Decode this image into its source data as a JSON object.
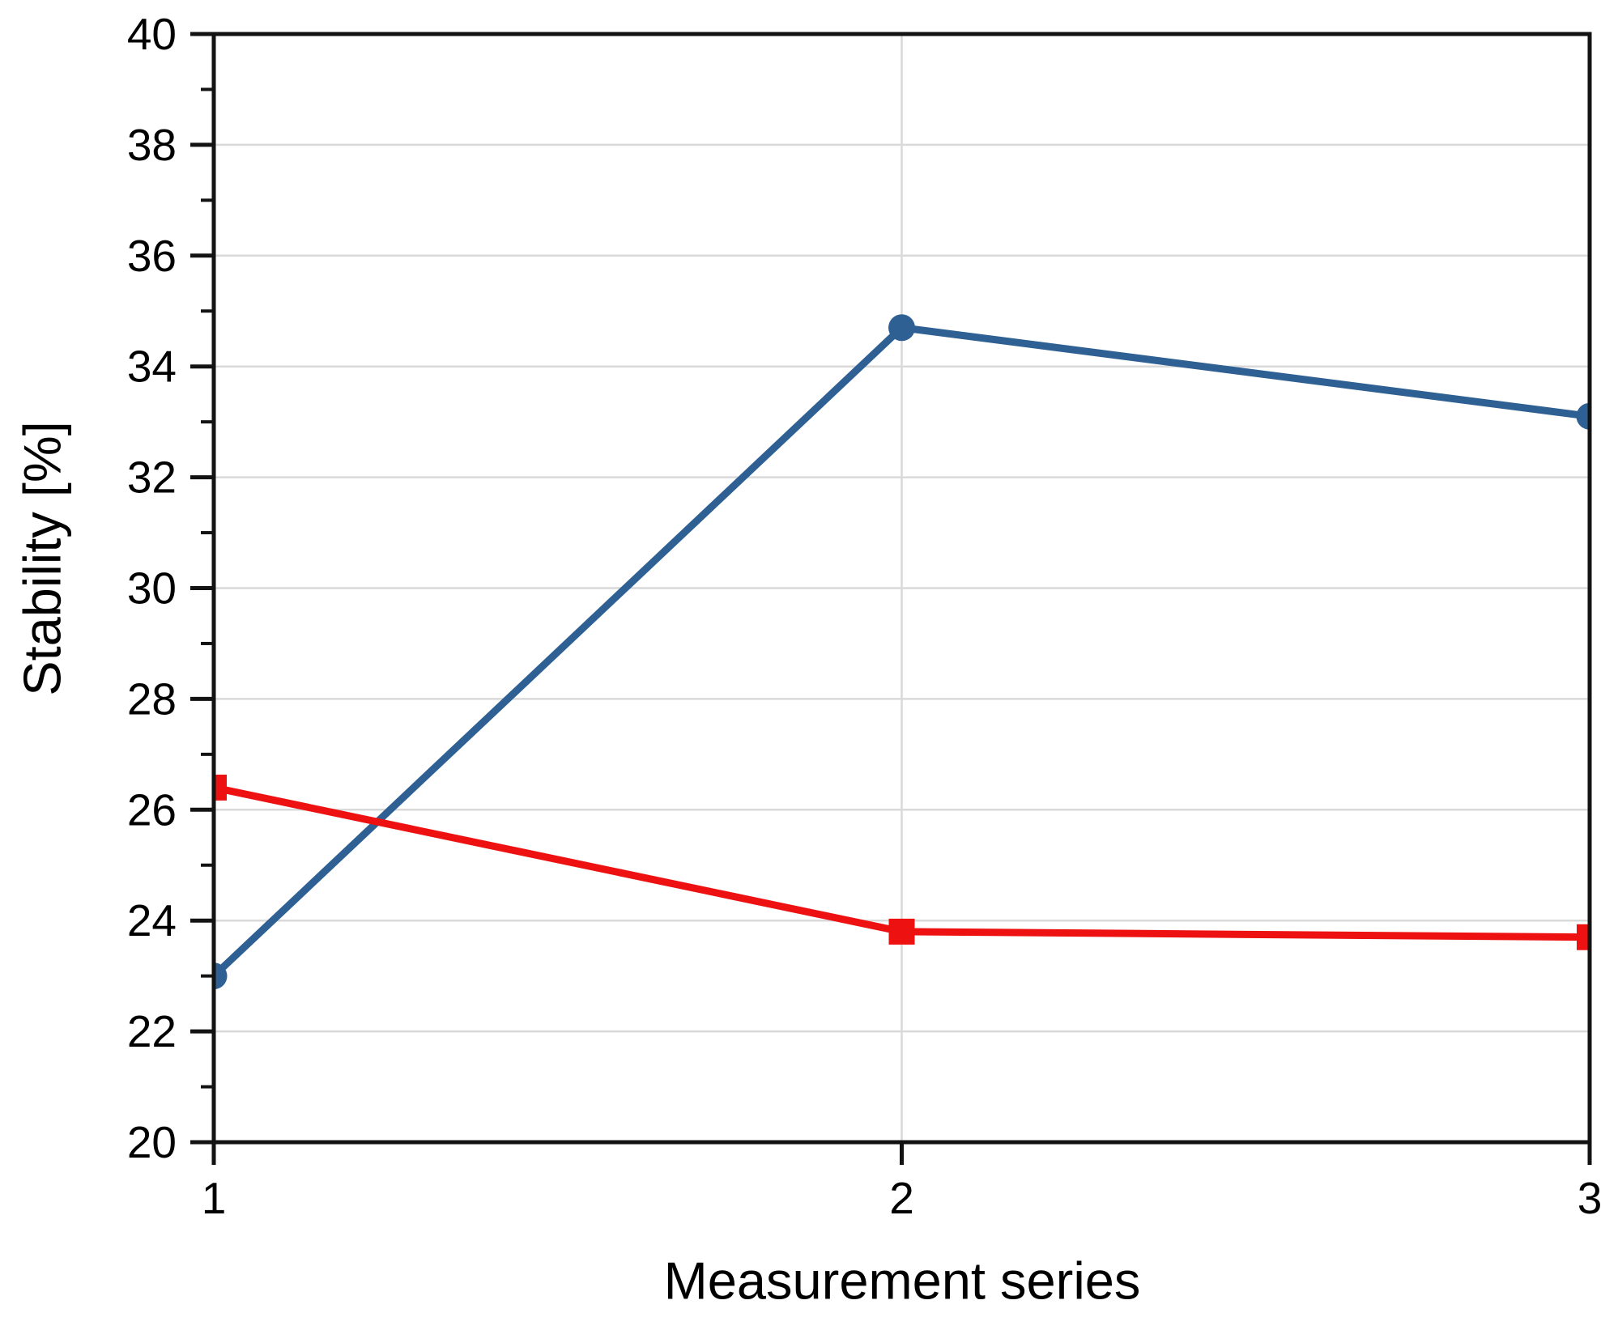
{
  "figure": {
    "background": "#ffffff",
    "axis_color": "#131313",
    "grid_color": "#d9d9d9",
    "tick_label_color": "#000000"
  },
  "chart_data": {
    "type": "line",
    "title": "",
    "xlabel": "Measurement series",
    "ylabel": "Stability [%]",
    "x": [
      1,
      2,
      3
    ],
    "xlim": [
      1,
      3
    ],
    "ylim": [
      20,
      40
    ],
    "x_tick_labels": [
      "1",
      "2",
      "3"
    ],
    "y_tick_labels": [
      "20",
      "22",
      "24",
      "26",
      "28",
      "30",
      "32",
      "34",
      "36",
      "38",
      "40"
    ],
    "y_major_ticks": [
      20,
      22,
      24,
      26,
      28,
      30,
      32,
      34,
      36,
      38,
      40
    ],
    "y_minor_ticks": [
      21,
      23,
      25,
      27,
      29,
      31,
      33,
      35,
      37,
      39
    ],
    "grid": {
      "horizontal_at": [
        22,
        24,
        26,
        28,
        30,
        32,
        34,
        36,
        38
      ],
      "vertical_at": [
        2
      ]
    },
    "legend": "none",
    "series": [
      {
        "name": "blue-circle-series",
        "marker": "circle",
        "color": "#2e6093",
        "values": [
          23.0,
          34.7,
          33.1
        ]
      },
      {
        "name": "red-square-series",
        "marker": "square",
        "color": "#ee1111",
        "values": [
          26.4,
          23.8,
          23.7
        ]
      }
    ]
  }
}
